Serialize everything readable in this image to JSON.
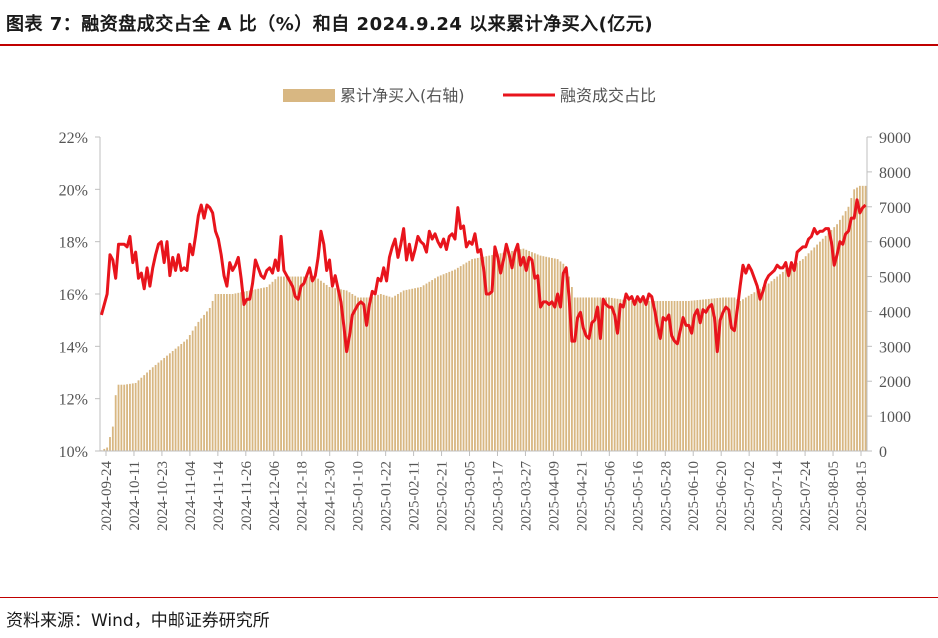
{
  "header": {
    "title": "图表 7：融资盘成交占全 A 比（%）和自 2024.9.24 以来累计净买入(亿元)"
  },
  "footer": {
    "source": "资料来源：Wind，中邮证券研究所"
  },
  "colors": {
    "accent_rule": "#c00000",
    "bar": "#d8b782",
    "line": "#e8141c"
  },
  "chart_data": {
    "type": "bar",
    "legend": {
      "position": "top-center",
      "bar_label": "累计净买入(右轴)",
      "line_label": "融资成交占比"
    },
    "x_tick_labels": [
      "2024-09-24",
      "2024-10-11",
      "2024-10-23",
      "2024-11-04",
      "2024-11-14",
      "2024-11-26",
      "2024-12-06",
      "2024-12-18",
      "2024-12-30",
      "2025-01-10",
      "2025-01-22",
      "2025-02-11",
      "2025-02-21",
      "2025-03-05",
      "2025-03-17",
      "2025-03-27",
      "2025-04-09",
      "2025-04-21",
      "2025-05-06",
      "2025-05-16",
      "2025-05-28",
      "2025-06-10",
      "2025-06-20",
      "2025-07-02",
      "2025-07-14",
      "2025-07-24",
      "2025-08-05",
      "2025-08-15"
    ],
    "y_left": {
      "ticks": [
        "10%",
        "12%",
        "14%",
        "16%",
        "18%",
        "20%",
        "22%"
      ],
      "min": 10,
      "max": 22
    },
    "y_right": {
      "ticks": [
        "0",
        "1000",
        "2000",
        "3000",
        "4000",
        "5000",
        "6000",
        "7000",
        "8000",
        "9000"
      ],
      "min": 0,
      "max": 9000
    },
    "bar_anchors": [
      [
        0,
        20
      ],
      [
        2,
        100
      ],
      [
        3,
        400
      ],
      [
        4,
        700
      ],
      [
        5,
        1600
      ],
      [
        6,
        1900
      ],
      [
        8,
        1900
      ],
      [
        12,
        1950
      ],
      [
        18,
        2400
      ],
      [
        24,
        2800
      ],
      [
        30,
        3200
      ],
      [
        34,
        3700
      ],
      [
        38,
        4100
      ],
      [
        40,
        4500
      ],
      [
        42,
        4500
      ],
      [
        46,
        4500
      ],
      [
        52,
        4600
      ],
      [
        58,
        4700
      ],
      [
        62,
        5000
      ],
      [
        70,
        5000
      ],
      [
        75,
        5000
      ],
      [
        80,
        4700
      ],
      [
        86,
        4600
      ],
      [
        90,
        4400
      ],
      [
        94,
        4400
      ],
      [
        98,
        4500
      ],
      [
        102,
        4400
      ],
      [
        106,
        4600
      ],
      [
        112,
        4700
      ],
      [
        118,
        5000
      ],
      [
        124,
        5200
      ],
      [
        130,
        5500
      ],
      [
        136,
        5600
      ],
      [
        142,
        5700
      ],
      [
        148,
        5800
      ],
      [
        154,
        5600
      ],
      [
        160,
        5500
      ],
      [
        163,
        5300
      ],
      [
        166,
        4400
      ],
      [
        172,
        4400
      ],
      [
        178,
        4400
      ],
      [
        186,
        4300
      ],
      [
        192,
        4300
      ],
      [
        198,
        4300
      ],
      [
        206,
        4300
      ],
      [
        212,
        4350
      ],
      [
        218,
        4400
      ],
      [
        222,
        4400
      ],
      [
        224,
        4300
      ],
      [
        228,
        4500
      ],
      [
        234,
        4800
      ],
      [
        240,
        5200
      ],
      [
        246,
        5500
      ],
      [
        252,
        6000
      ],
      [
        258,
        6500
      ],
      [
        262,
        7000
      ],
      [
        264,
        7500
      ],
      [
        266,
        7600
      ]
    ],
    "line_anchors": [
      [
        0,
        15.2
      ],
      [
        2,
        16.0
      ],
      [
        3,
        17.5
      ],
      [
        4,
        17.3
      ],
      [
        5,
        16.6
      ],
      [
        6,
        17.9
      ],
      [
        8,
        17.9
      ],
      [
        9,
        17.8
      ],
      [
        10,
        18.2
      ],
      [
        11,
        17.2
      ],
      [
        12,
        17.6
      ],
      [
        13,
        16.6
      ],
      [
        14,
        16.8
      ],
      [
        15,
        16.2
      ],
      [
        16,
        17.0
      ],
      [
        17,
        16.3
      ],
      [
        18,
        17.0
      ],
      [
        19,
        17.5
      ],
      [
        20,
        17.9
      ],
      [
        21,
        18.0
      ],
      [
        22,
        17.2
      ],
      [
        23,
        18.0
      ],
      [
        24,
        16.7
      ],
      [
        25,
        17.4
      ],
      [
        26,
        16.9
      ],
      [
        27,
        17.5
      ],
      [
        28,
        16.9
      ],
      [
        29,
        17.0
      ],
      [
        30,
        16.9
      ],
      [
        31,
        17.9
      ],
      [
        32,
        17.5
      ],
      [
        33,
        18.2
      ],
      [
        34,
        19.0
      ],
      [
        35,
        19.4
      ],
      [
        36,
        18.9
      ],
      [
        37,
        19.4
      ],
      [
        38,
        19.3
      ],
      [
        39,
        19.1
      ],
      [
        40,
        18.4
      ],
      [
        41,
        18.1
      ],
      [
        42,
        17.5
      ],
      [
        43,
        16.7
      ],
      [
        44,
        16.3
      ],
      [
        45,
        17.2
      ],
      [
        46,
        16.9
      ],
      [
        47,
        17.1
      ],
      [
        48,
        17.4
      ],
      [
        49,
        16.6
      ],
      [
        50,
        15.6
      ],
      [
        51,
        15.8
      ],
      [
        52,
        15.8
      ],
      [
        53,
        16.4
      ],
      [
        54,
        17.3
      ],
      [
        55,
        17.0
      ],
      [
        56,
        16.7
      ],
      [
        57,
        16.6
      ],
      [
        58,
        16.9
      ],
      [
        59,
        17.0
      ],
      [
        60,
        16.8
      ],
      [
        61,
        17.3
      ],
      [
        62,
        16.9
      ],
      [
        63,
        18.2
      ],
      [
        64,
        16.9
      ],
      [
        65,
        16.7
      ],
      [
        66,
        16.5
      ],
      [
        67,
        16.3
      ],
      [
        68,
        15.9
      ],
      [
        69,
        15.8
      ],
      [
        70,
        16.3
      ],
      [
        71,
        16.4
      ],
      [
        72,
        16.7
      ],
      [
        73,
        17.0
      ],
      [
        74,
        16.5
      ],
      [
        75,
        16.7
      ],
      [
        76,
        17.4
      ],
      [
        77,
        18.4
      ],
      [
        78,
        17.9
      ],
      [
        79,
        16.9
      ],
      [
        80,
        17.3
      ],
      [
        81,
        16.3
      ],
      [
        82,
        16.7
      ],
      [
        83,
        16.2
      ],
      [
        84,
        15.7
      ],
      [
        85,
        14.8
      ],
      [
        86,
        13.8
      ],
      [
        87,
        14.4
      ],
      [
        88,
        15.2
      ],
      [
        89,
        15.4
      ],
      [
        90,
        15.6
      ],
      [
        91,
        15.7
      ],
      [
        92,
        15.6
      ],
      [
        93,
        14.8
      ],
      [
        94,
        15.6
      ],
      [
        95,
        16.1
      ],
      [
        96,
        16.0
      ],
      [
        97,
        16.6
      ],
      [
        98,
        16.5
      ],
      [
        99,
        17.0
      ],
      [
        100,
        16.5
      ],
      [
        101,
        17.4
      ],
      [
        102,
        17.8
      ],
      [
        103,
        18.1
      ],
      [
        104,
        17.4
      ],
      [
        105,
        17.9
      ],
      [
        106,
        18.5
      ],
      [
        107,
        17.3
      ],
      [
        108,
        17.9
      ],
      [
        109,
        17.3
      ],
      [
        110,
        17.7
      ],
      [
        111,
        18.2
      ],
      [
        112,
        18.0
      ],
      [
        113,
        17.9
      ],
      [
        114,
        17.6
      ],
      [
        115,
        18.4
      ],
      [
        116,
        18.1
      ],
      [
        117,
        18.3
      ],
      [
        118,
        18.0
      ],
      [
        119,
        17.8
      ],
      [
        120,
        18.1
      ],
      [
        121,
        17.7
      ],
      [
        122,
        18.2
      ],
      [
        123,
        18.3
      ],
      [
        124,
        18.1
      ],
      [
        125,
        19.3
      ],
      [
        126,
        18.5
      ],
      [
        127,
        18.6
      ],
      [
        128,
        17.8
      ],
      [
        129,
        18.0
      ],
      [
        130,
        17.9
      ],
      [
        131,
        18.3
      ],
      [
        132,
        17.6
      ],
      [
        133,
        17.7
      ],
      [
        134,
        17.0
      ],
      [
        135,
        16.0
      ],
      [
        136,
        16.0
      ],
      [
        137,
        16.1
      ],
      [
        138,
        17.8
      ],
      [
        139,
        17.4
      ],
      [
        140,
        16.8
      ],
      [
        141,
        17.3
      ],
      [
        142,
        17.9
      ],
      [
        143,
        17.5
      ],
      [
        144,
        17.0
      ],
      [
        145,
        17.6
      ],
      [
        146,
        17.9
      ],
      [
        147,
        17.1
      ],
      [
        148,
        17.4
      ],
      [
        149,
        16.9
      ],
      [
        150,
        17.4
      ],
      [
        151,
        17.3
      ],
      [
        152,
        16.6
      ],
      [
        153,
        16.7
      ],
      [
        154,
        15.5
      ],
      [
        155,
        15.7
      ],
      [
        156,
        15.7
      ],
      [
        157,
        15.6
      ],
      [
        158,
        15.7
      ],
      [
        159,
        15.5
      ],
      [
        160,
        16.0
      ],
      [
        161,
        15.5
      ],
      [
        162,
        16.8
      ],
      [
        163,
        17.0
      ],
      [
        164,
        15.9
      ],
      [
        165,
        14.2
      ],
      [
        166,
        14.2
      ],
      [
        167,
        15.1
      ],
      [
        168,
        15.3
      ],
      [
        169,
        14.7
      ],
      [
        170,
        14.4
      ],
      [
        171,
        14.3
      ],
      [
        172,
        14.9
      ],
      [
        173,
        15.0
      ],
      [
        174,
        15.5
      ],
      [
        175,
        14.3
      ],
      [
        176,
        15.8
      ],
      [
        177,
        15.6
      ],
      [
        178,
        15.5
      ],
      [
        179,
        15.5
      ],
      [
        180,
        15.2
      ],
      [
        181,
        14.5
      ],
      [
        182,
        15.6
      ],
      [
        183,
        15.5
      ],
      [
        184,
        16.0
      ],
      [
        185,
        15.8
      ],
      [
        186,
        15.9
      ],
      [
        187,
        15.6
      ],
      [
        188,
        15.9
      ],
      [
        189,
        15.7
      ],
      [
        190,
        15.9
      ],
      [
        191,
        15.6
      ],
      [
        192,
        16.0
      ],
      [
        193,
        15.9
      ],
      [
        194,
        15.4
      ],
      [
        195,
        14.8
      ],
      [
        196,
        14.3
      ],
      [
        197,
        15.1
      ],
      [
        198,
        15.0
      ],
      [
        199,
        15.2
      ],
      [
        200,
        14.4
      ],
      [
        201,
        14.2
      ],
      [
        202,
        14.1
      ],
      [
        203,
        14.6
      ],
      [
        204,
        15.1
      ],
      [
        205,
        14.8
      ],
      [
        206,
        14.8
      ],
      [
        207,
        14.5
      ],
      [
        208,
        15.2
      ],
      [
        209,
        15.4
      ],
      [
        210,
        14.9
      ],
      [
        211,
        15.4
      ],
      [
        212,
        15.3
      ],
      [
        213,
        15.5
      ],
      [
        214,
        15.6
      ],
      [
        215,
        15.1
      ],
      [
        216,
        13.8
      ],
      [
        217,
        15.0
      ],
      [
        218,
        15.3
      ],
      [
        219,
        15.5
      ],
      [
        220,
        15.4
      ],
      [
        221,
        14.7
      ],
      [
        222,
        14.6
      ],
      [
        223,
        15.4
      ],
      [
        224,
        16.3
      ],
      [
        225,
        17.1
      ],
      [
        226,
        16.8
      ],
      [
        227,
        17.1
      ],
      [
        228,
        16.9
      ],
      [
        229,
        16.6
      ],
      [
        230,
        16.3
      ],
      [
        231,
        15.8
      ],
      [
        232,
        16.1
      ],
      [
        233,
        16.5
      ],
      [
        234,
        16.7
      ],
      [
        235,
        16.8
      ],
      [
        236,
        16.9
      ],
      [
        237,
        17.1
      ],
      [
        238,
        17.0
      ],
      [
        239,
        17.0
      ],
      [
        240,
        17.2
      ],
      [
        241,
        16.7
      ],
      [
        242,
        17.2
      ],
      [
        243,
        16.9
      ],
      [
        244,
        17.6
      ],
      [
        245,
        17.7
      ],
      [
        246,
        17.8
      ],
      [
        247,
        17.8
      ],
      [
        248,
        18.1
      ],
      [
        249,
        18.2
      ],
      [
        250,
        18.5
      ],
      [
        251,
        18.3
      ],
      [
        252,
        18.4
      ],
      [
        253,
        18.4
      ],
      [
        254,
        18.5
      ],
      [
        255,
        18.5
      ],
      [
        256,
        18.0
      ],
      [
        257,
        17.1
      ],
      [
        258,
        17.5
      ],
      [
        259,
        18.0
      ],
      [
        260,
        17.9
      ],
      [
        261,
        18.3
      ],
      [
        262,
        18.4
      ],
      [
        263,
        18.9
      ],
      [
        264,
        18.9
      ],
      [
        265,
        19.6
      ],
      [
        266,
        19.1
      ],
      [
        267,
        19.3
      ],
      [
        268,
        19.4
      ]
    ],
    "n_bars": 269
  }
}
